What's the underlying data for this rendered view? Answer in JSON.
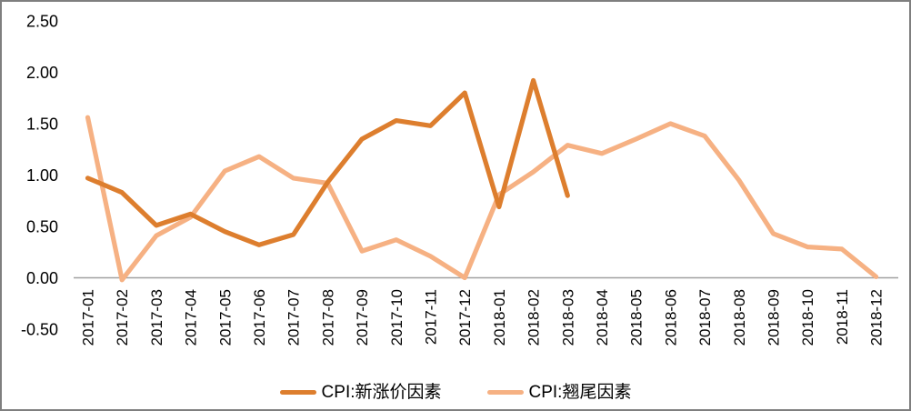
{
  "window": {
    "background_color": "#FFFFFF",
    "frame_border_color": "#7F7F7F"
  },
  "chart_data": {
    "type": "line",
    "title": "",
    "xlabel": "",
    "ylabel": "",
    "categories": [
      "2017-01",
      "2017-02",
      "2017-03",
      "2017-04",
      "2017-05",
      "2017-06",
      "2017-07",
      "2017-08",
      "2017-09",
      "2017-10",
      "2017-11",
      "2017-12",
      "2018-01",
      "2018-02",
      "2018-03",
      "2018-04",
      "2018-05",
      "2018-06",
      "2018-07",
      "2018-08",
      "2018-09",
      "2018-10",
      "2018-11",
      "2018-12"
    ],
    "series": [
      {
        "name": "CPI:新涨价因素",
        "color": "#DD7E2E",
        "values": [
          0.97,
          0.83,
          0.51,
          0.62,
          0.45,
          0.32,
          0.42,
          0.93,
          1.35,
          1.53,
          1.48,
          1.8,
          0.69,
          1.92,
          0.8,
          null,
          null,
          null,
          null,
          null,
          null,
          null,
          null,
          null
        ]
      },
      {
        "name": "CPI:翘尾因素",
        "color": "#F6B183",
        "values": [
          1.56,
          -0.02,
          0.41,
          0.59,
          1.04,
          1.18,
          0.97,
          0.92,
          0.26,
          0.37,
          0.21,
          0.0,
          0.81,
          1.03,
          1.29,
          1.21,
          1.35,
          1.5,
          1.38,
          0.95,
          0.43,
          0.3,
          0.28,
          0.01
        ]
      }
    ],
    "ylim": [
      -0.5,
      2.5
    ],
    "y_ticks": [
      "2.50",
      "2.00",
      "1.50",
      "1.00",
      "0.50",
      "0.00",
      "-0.50"
    ],
    "x_tick_rotation_degrees": 90,
    "grid": false,
    "axis_line_color": "#A0A0A0",
    "tick_label_color": "#000000",
    "legend_position": "bottom-center"
  }
}
